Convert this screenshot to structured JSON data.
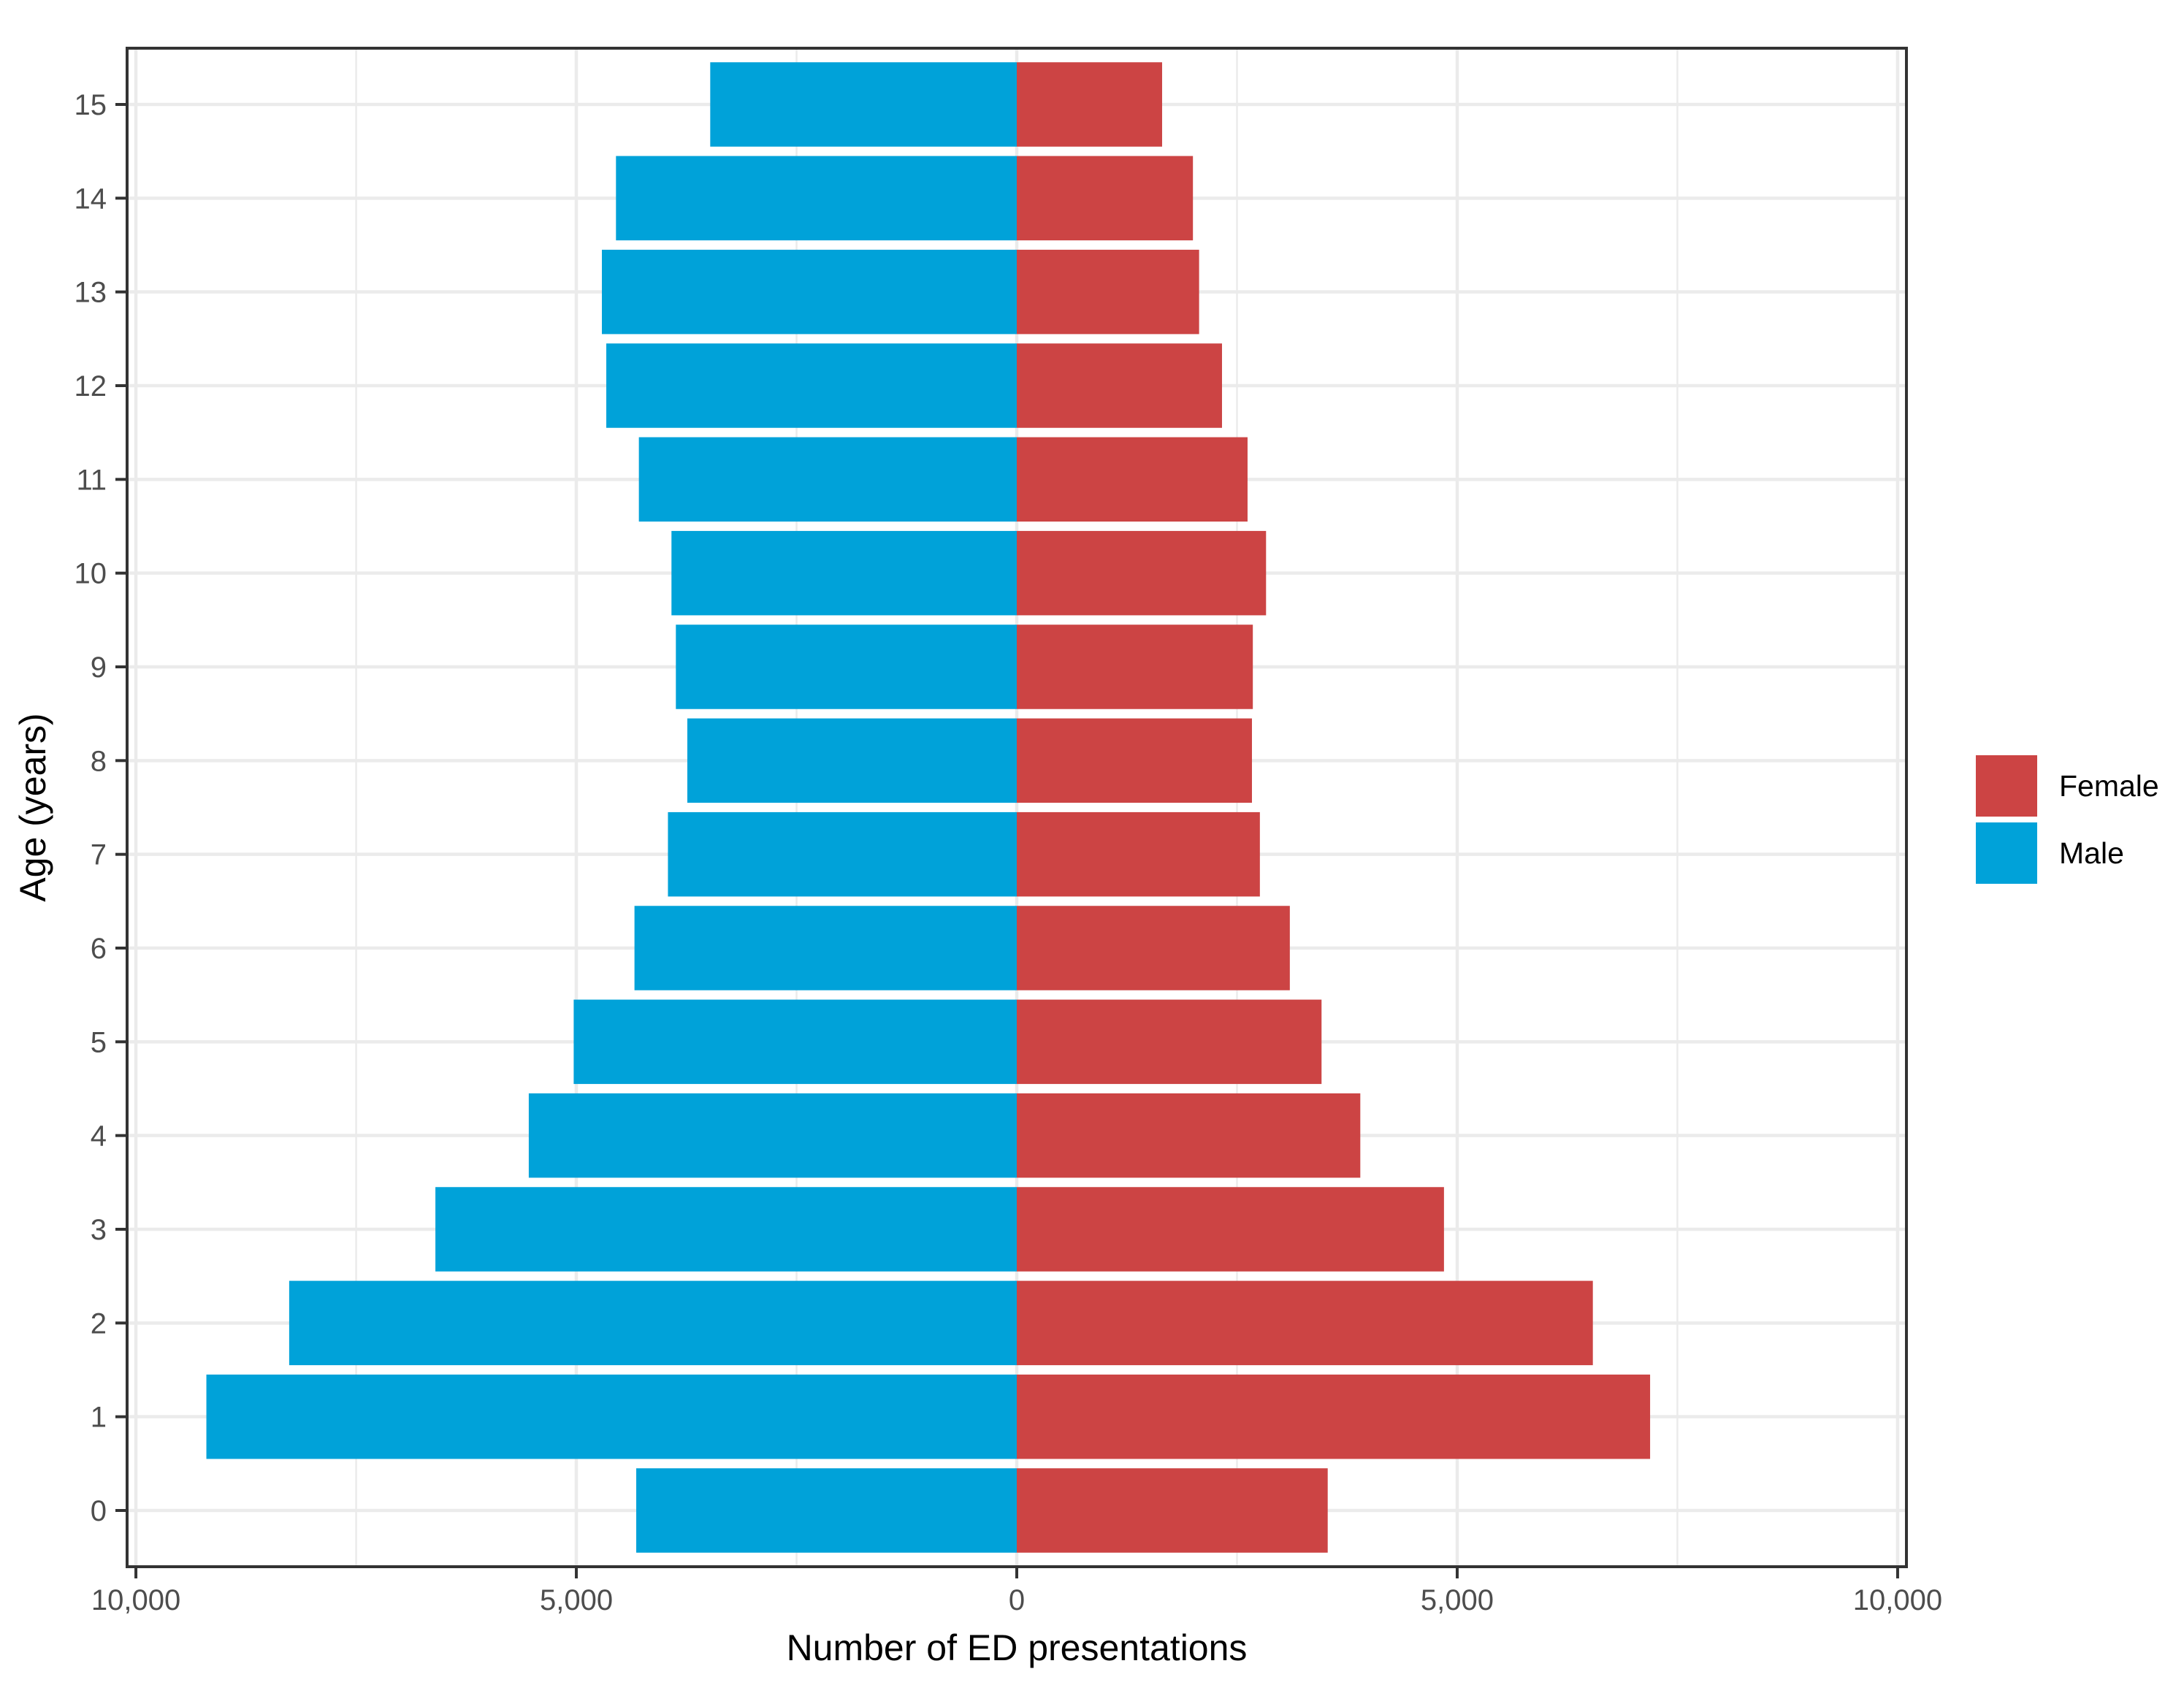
{
  "chart_data": {
    "type": "bar",
    "orientation": "horizontal",
    "layout": "population-pyramid",
    "categories": [
      "0",
      "1",
      "2",
      "3",
      "4",
      "5",
      "6",
      "7",
      "8",
      "9",
      "10",
      "11",
      "12",
      "13",
      "14",
      "15"
    ],
    "series": [
      {
        "name": "Female",
        "color": "#CC4444",
        "direction": "right",
        "values": [
          3530,
          7190,
          6540,
          4850,
          3900,
          3460,
          3100,
          2760,
          2670,
          2680,
          2830,
          2620,
          2330,
          2070,
          2000,
          1650
        ]
      },
      {
        "name": "Male",
        "color": "#00A2D9",
        "direction": "left",
        "values": [
          4320,
          9200,
          8260,
          6600,
          5540,
          5030,
          4340,
          3960,
          3740,
          3870,
          3920,
          4290,
          4660,
          4710,
          4550,
          3480
        ]
      }
    ],
    "xlabel": "Number of ED presentations",
    "ylabel": "Age (years)",
    "xlim": [
      -10100,
      10100
    ],
    "xticks": [
      -10000,
      -5000,
      0,
      5000,
      10000
    ],
    "xtick_labels": [
      "10,000",
      "5,000",
      "0",
      "5,000",
      "10,000"
    ],
    "grid": true,
    "legend": {
      "position": "right",
      "items": [
        {
          "label": "Female",
          "color": "#CC4444"
        },
        {
          "label": "Male",
          "color": "#00A2D9"
        }
      ]
    }
  }
}
